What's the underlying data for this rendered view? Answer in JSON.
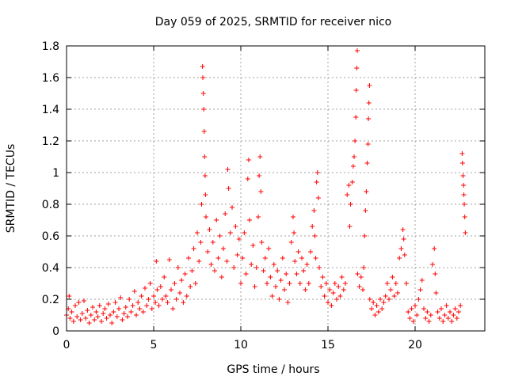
{
  "chart_data": {
    "type": "scatter",
    "title": "Day 059 of 2025, SRMTID for receiver nico",
    "xlabel": "GPS time / hours",
    "ylabel": "SRMTID / TECUs",
    "xlim": [
      0,
      24
    ],
    "ylim": [
      0,
      1.8
    ],
    "xticks": [
      0,
      5,
      10,
      15,
      20
    ],
    "xtick_labels": [
      "0",
      "5",
      "10",
      "15",
      "20"
    ],
    "yticks": [
      0,
      0.2,
      0.4,
      0.6,
      0.8,
      1,
      1.2,
      1.4,
      1.6,
      1.8
    ],
    "ytick_labels": [
      "0",
      "0.2",
      "0.4",
      "0.6",
      "0.8",
      "1",
      "1.2",
      "1.4",
      "1.6",
      "1.8"
    ],
    "grid": true,
    "marker": "+",
    "color": "#ff0000",
    "series": [
      {
        "name": "SRMTID",
        "points": [
          [
            0.0,
            0.1
          ],
          [
            0.1,
            0.14
          ],
          [
            0.15,
            0.22
          ],
          [
            0.2,
            0.08
          ],
          [
            0.3,
            0.12
          ],
          [
            0.4,
            0.06
          ],
          [
            0.5,
            0.16
          ],
          [
            0.6,
            0.09
          ],
          [
            0.7,
            0.18
          ],
          [
            0.8,
            0.07
          ],
          [
            0.9,
            0.11
          ],
          [
            1.0,
            0.19
          ],
          [
            1.1,
            0.08
          ],
          [
            1.2,
            0.13
          ],
          [
            1.3,
            0.05
          ],
          [
            1.4,
            0.1
          ],
          [
            1.5,
            0.15
          ],
          [
            1.6,
            0.07
          ],
          [
            1.7,
            0.12
          ],
          [
            1.8,
            0.09
          ],
          [
            1.9,
            0.16
          ],
          [
            2.0,
            0.06
          ],
          [
            2.1,
            0.11
          ],
          [
            2.2,
            0.14
          ],
          [
            2.3,
            0.08
          ],
          [
            2.4,
            0.17
          ],
          [
            2.5,
            0.1
          ],
          [
            2.6,
            0.05
          ],
          [
            2.7,
            0.12
          ],
          [
            2.8,
            0.18
          ],
          [
            2.9,
            0.09
          ],
          [
            3.0,
            0.14
          ],
          [
            3.1,
            0.21
          ],
          [
            3.2,
            0.07
          ],
          [
            3.3,
            0.11
          ],
          [
            3.4,
            0.15
          ],
          [
            3.5,
            0.09
          ],
          [
            3.6,
            0.2
          ],
          [
            3.7,
            0.12
          ],
          [
            3.8,
            0.16
          ],
          [
            3.9,
            0.25
          ],
          [
            4.0,
            0.1
          ],
          [
            4.1,
            0.18
          ],
          [
            4.2,
            0.14
          ],
          [
            4.3,
            0.22
          ],
          [
            4.4,
            0.12
          ],
          [
            4.5,
            0.27
          ],
          [
            4.6,
            0.16
          ],
          [
            4.7,
            0.2
          ],
          [
            4.8,
            0.3
          ],
          [
            4.9,
            0.14
          ],
          [
            5.0,
            0.22
          ],
          [
            5.1,
            0.18
          ],
          [
            5.15,
            0.44
          ],
          [
            5.2,
            0.26
          ],
          [
            5.3,
            0.16
          ],
          [
            5.4,
            0.28
          ],
          [
            5.5,
            0.2
          ],
          [
            5.6,
            0.34
          ],
          [
            5.7,
            0.22
          ],
          [
            5.8,
            0.18
          ],
          [
            5.9,
            0.45
          ],
          [
            6.0,
            0.26
          ],
          [
            6.1,
            0.14
          ],
          [
            6.2,
            0.3
          ],
          [
            6.3,
            0.2
          ],
          [
            6.4,
            0.4
          ],
          [
            6.5,
            0.24
          ],
          [
            6.6,
            0.32
          ],
          [
            6.7,
            0.18
          ],
          [
            6.8,
            0.36
          ],
          [
            6.9,
            0.22
          ],
          [
            7.0,
            0.46
          ],
          [
            7.1,
            0.28
          ],
          [
            7.2,
            0.38
          ],
          [
            7.3,
            0.52
          ],
          [
            7.4,
            0.3
          ],
          [
            7.5,
            0.62
          ],
          [
            7.6,
            0.44
          ],
          [
            7.7,
            0.56
          ],
          [
            7.75,
            0.8
          ],
          [
            7.8,
            1.67
          ],
          [
            7.82,
            1.6
          ],
          [
            7.85,
            1.5
          ],
          [
            7.87,
            1.4
          ],
          [
            7.9,
            1.26
          ],
          [
            7.92,
            1.1
          ],
          [
            7.95,
            0.98
          ],
          [
            7.97,
            0.86
          ],
          [
            8.0,
            0.72
          ],
          [
            8.1,
            0.5
          ],
          [
            8.2,
            0.64
          ],
          [
            8.3,
            0.42
          ],
          [
            8.4,
            0.56
          ],
          [
            8.5,
            0.38
          ],
          [
            8.6,
            0.7
          ],
          [
            8.7,
            0.46
          ],
          [
            8.8,
            0.6
          ],
          [
            8.9,
            0.34
          ],
          [
            9.0,
            0.52
          ],
          [
            9.1,
            0.74
          ],
          [
            9.2,
            0.44
          ],
          [
            9.25,
            1.02
          ],
          [
            9.3,
            0.9
          ],
          [
            9.4,
            0.62
          ],
          [
            9.5,
            0.78
          ],
          [
            9.6,
            0.4
          ],
          [
            9.7,
            0.66
          ],
          [
            9.8,
            0.48
          ],
          [
            9.9,
            0.58
          ],
          [
            10.0,
            0.3
          ],
          [
            10.1,
            0.46
          ],
          [
            10.2,
            0.62
          ],
          [
            10.3,
            0.36
          ],
          [
            10.4,
            0.96
          ],
          [
            10.45,
            1.08
          ],
          [
            10.5,
            0.7
          ],
          [
            10.6,
            0.42
          ],
          [
            10.7,
            0.54
          ],
          [
            10.8,
            0.28
          ],
          [
            10.9,
            0.4
          ],
          [
            11.0,
            0.72
          ],
          [
            11.05,
            0.98
          ],
          [
            11.1,
            1.1
          ],
          [
            11.15,
            0.88
          ],
          [
            11.2,
            0.56
          ],
          [
            11.3,
            0.38
          ],
          [
            11.4,
            0.46
          ],
          [
            11.5,
            0.3
          ],
          [
            11.6,
            0.52
          ],
          [
            11.7,
            0.34
          ],
          [
            11.8,
            0.22
          ],
          [
            11.9,
            0.42
          ],
          [
            12.0,
            0.28
          ],
          [
            12.1,
            0.38
          ],
          [
            12.2,
            0.2
          ],
          [
            12.3,
            0.32
          ],
          [
            12.4,
            0.46
          ],
          [
            12.5,
            0.26
          ],
          [
            12.6,
            0.36
          ],
          [
            12.7,
            0.18
          ],
          [
            12.8,
            0.3
          ],
          [
            12.9,
            0.56
          ],
          [
            13.0,
            0.72
          ],
          [
            13.05,
            0.62
          ],
          [
            13.1,
            0.44
          ],
          [
            13.2,
            0.36
          ],
          [
            13.3,
            0.5
          ],
          [
            13.4,
            0.3
          ],
          [
            13.5,
            0.46
          ],
          [
            13.6,
            0.38
          ],
          [
            13.7,
            0.26
          ],
          [
            13.8,
            0.42
          ],
          [
            13.9,
            0.3
          ],
          [
            14.0,
            0.5
          ],
          [
            14.1,
            0.66
          ],
          [
            14.2,
            0.76
          ],
          [
            14.25,
            0.6
          ],
          [
            14.3,
            0.46
          ],
          [
            14.35,
            0.94
          ],
          [
            14.4,
            1.0
          ],
          [
            14.45,
            0.84
          ],
          [
            14.5,
            0.4
          ],
          [
            14.6,
            0.28
          ],
          [
            14.7,
            0.34
          ],
          [
            14.8,
            0.22
          ],
          [
            14.9,
            0.3
          ],
          [
            15.0,
            0.18
          ],
          [
            15.1,
            0.26
          ],
          [
            15.2,
            0.16
          ],
          [
            15.3,
            0.24
          ],
          [
            15.4,
            0.3
          ],
          [
            15.5,
            0.2
          ],
          [
            15.6,
            0.28
          ],
          [
            15.7,
            0.22
          ],
          [
            15.8,
            0.34
          ],
          [
            15.9,
            0.26
          ],
          [
            16.0,
            0.3
          ],
          [
            16.1,
            0.86
          ],
          [
            16.2,
            0.92
          ],
          [
            16.25,
            0.66
          ],
          [
            16.3,
            0.8
          ],
          [
            16.4,
            0.94
          ],
          [
            16.45,
            1.04
          ],
          [
            16.5,
            1.1
          ],
          [
            16.55,
            1.2
          ],
          [
            16.6,
            1.35
          ],
          [
            16.62,
            1.52
          ],
          [
            16.65,
            1.66
          ],
          [
            16.68,
            1.77
          ],
          [
            16.7,
            0.36
          ],
          [
            16.8,
            0.28
          ],
          [
            16.9,
            0.34
          ],
          [
            17.0,
            0.26
          ],
          [
            17.05,
            0.4
          ],
          [
            17.1,
            0.6
          ],
          [
            17.15,
            0.76
          ],
          [
            17.2,
            0.88
          ],
          [
            17.25,
            1.06
          ],
          [
            17.3,
            1.18
          ],
          [
            17.32,
            1.34
          ],
          [
            17.35,
            1.44
          ],
          [
            17.38,
            1.55
          ],
          [
            17.4,
            0.2
          ],
          [
            17.5,
            0.14
          ],
          [
            17.6,
            0.18
          ],
          [
            17.7,
            0.1
          ],
          [
            17.8,
            0.16
          ],
          [
            17.9,
            0.12
          ],
          [
            18.0,
            0.2
          ],
          [
            18.1,
            0.14
          ],
          [
            18.2,
            0.18
          ],
          [
            18.3,
            0.22
          ],
          [
            18.4,
            0.3
          ],
          [
            18.5,
            0.2
          ],
          [
            18.6,
            0.26
          ],
          [
            18.7,
            0.34
          ],
          [
            18.8,
            0.22
          ],
          [
            18.9,
            0.3
          ],
          [
            19.0,
            0.24
          ],
          [
            19.1,
            0.46
          ],
          [
            19.2,
            0.52
          ],
          [
            19.3,
            0.64
          ],
          [
            19.35,
            0.58
          ],
          [
            19.4,
            0.48
          ],
          [
            19.5,
            0.3
          ],
          [
            19.6,
            0.12
          ],
          [
            19.7,
            0.08
          ],
          [
            19.8,
            0.14
          ],
          [
            19.9,
            0.06
          ],
          [
            20.0,
            0.16
          ],
          [
            20.1,
            0.1
          ],
          [
            20.2,
            0.2
          ],
          [
            20.3,
            0.26
          ],
          [
            20.4,
            0.32
          ],
          [
            20.5,
            0.14
          ],
          [
            20.6,
            0.08
          ],
          [
            20.7,
            0.12
          ],
          [
            20.8,
            0.06
          ],
          [
            20.9,
            0.1
          ],
          [
            21.0,
            0.42
          ],
          [
            21.1,
            0.52
          ],
          [
            21.15,
            0.36
          ],
          [
            21.2,
            0.24
          ],
          [
            21.3,
            0.12
          ],
          [
            21.4,
            0.08
          ],
          [
            21.5,
            0.14
          ],
          [
            21.6,
            0.06
          ],
          [
            21.7,
            0.1
          ],
          [
            21.8,
            0.16
          ],
          [
            21.9,
            0.08
          ],
          [
            22.0,
            0.12
          ],
          [
            22.1,
            0.06
          ],
          [
            22.2,
            0.1
          ],
          [
            22.3,
            0.14
          ],
          [
            22.4,
            0.08
          ],
          [
            22.5,
            0.12
          ],
          [
            22.6,
            0.16
          ],
          [
            22.7,
            1.12
          ],
          [
            22.72,
            1.06
          ],
          [
            22.75,
            0.98
          ],
          [
            22.78,
            0.92
          ],
          [
            22.8,
            0.86
          ],
          [
            22.82,
            0.8
          ],
          [
            22.85,
            0.72
          ],
          [
            22.88,
            0.62
          ]
        ]
      }
    ]
  }
}
